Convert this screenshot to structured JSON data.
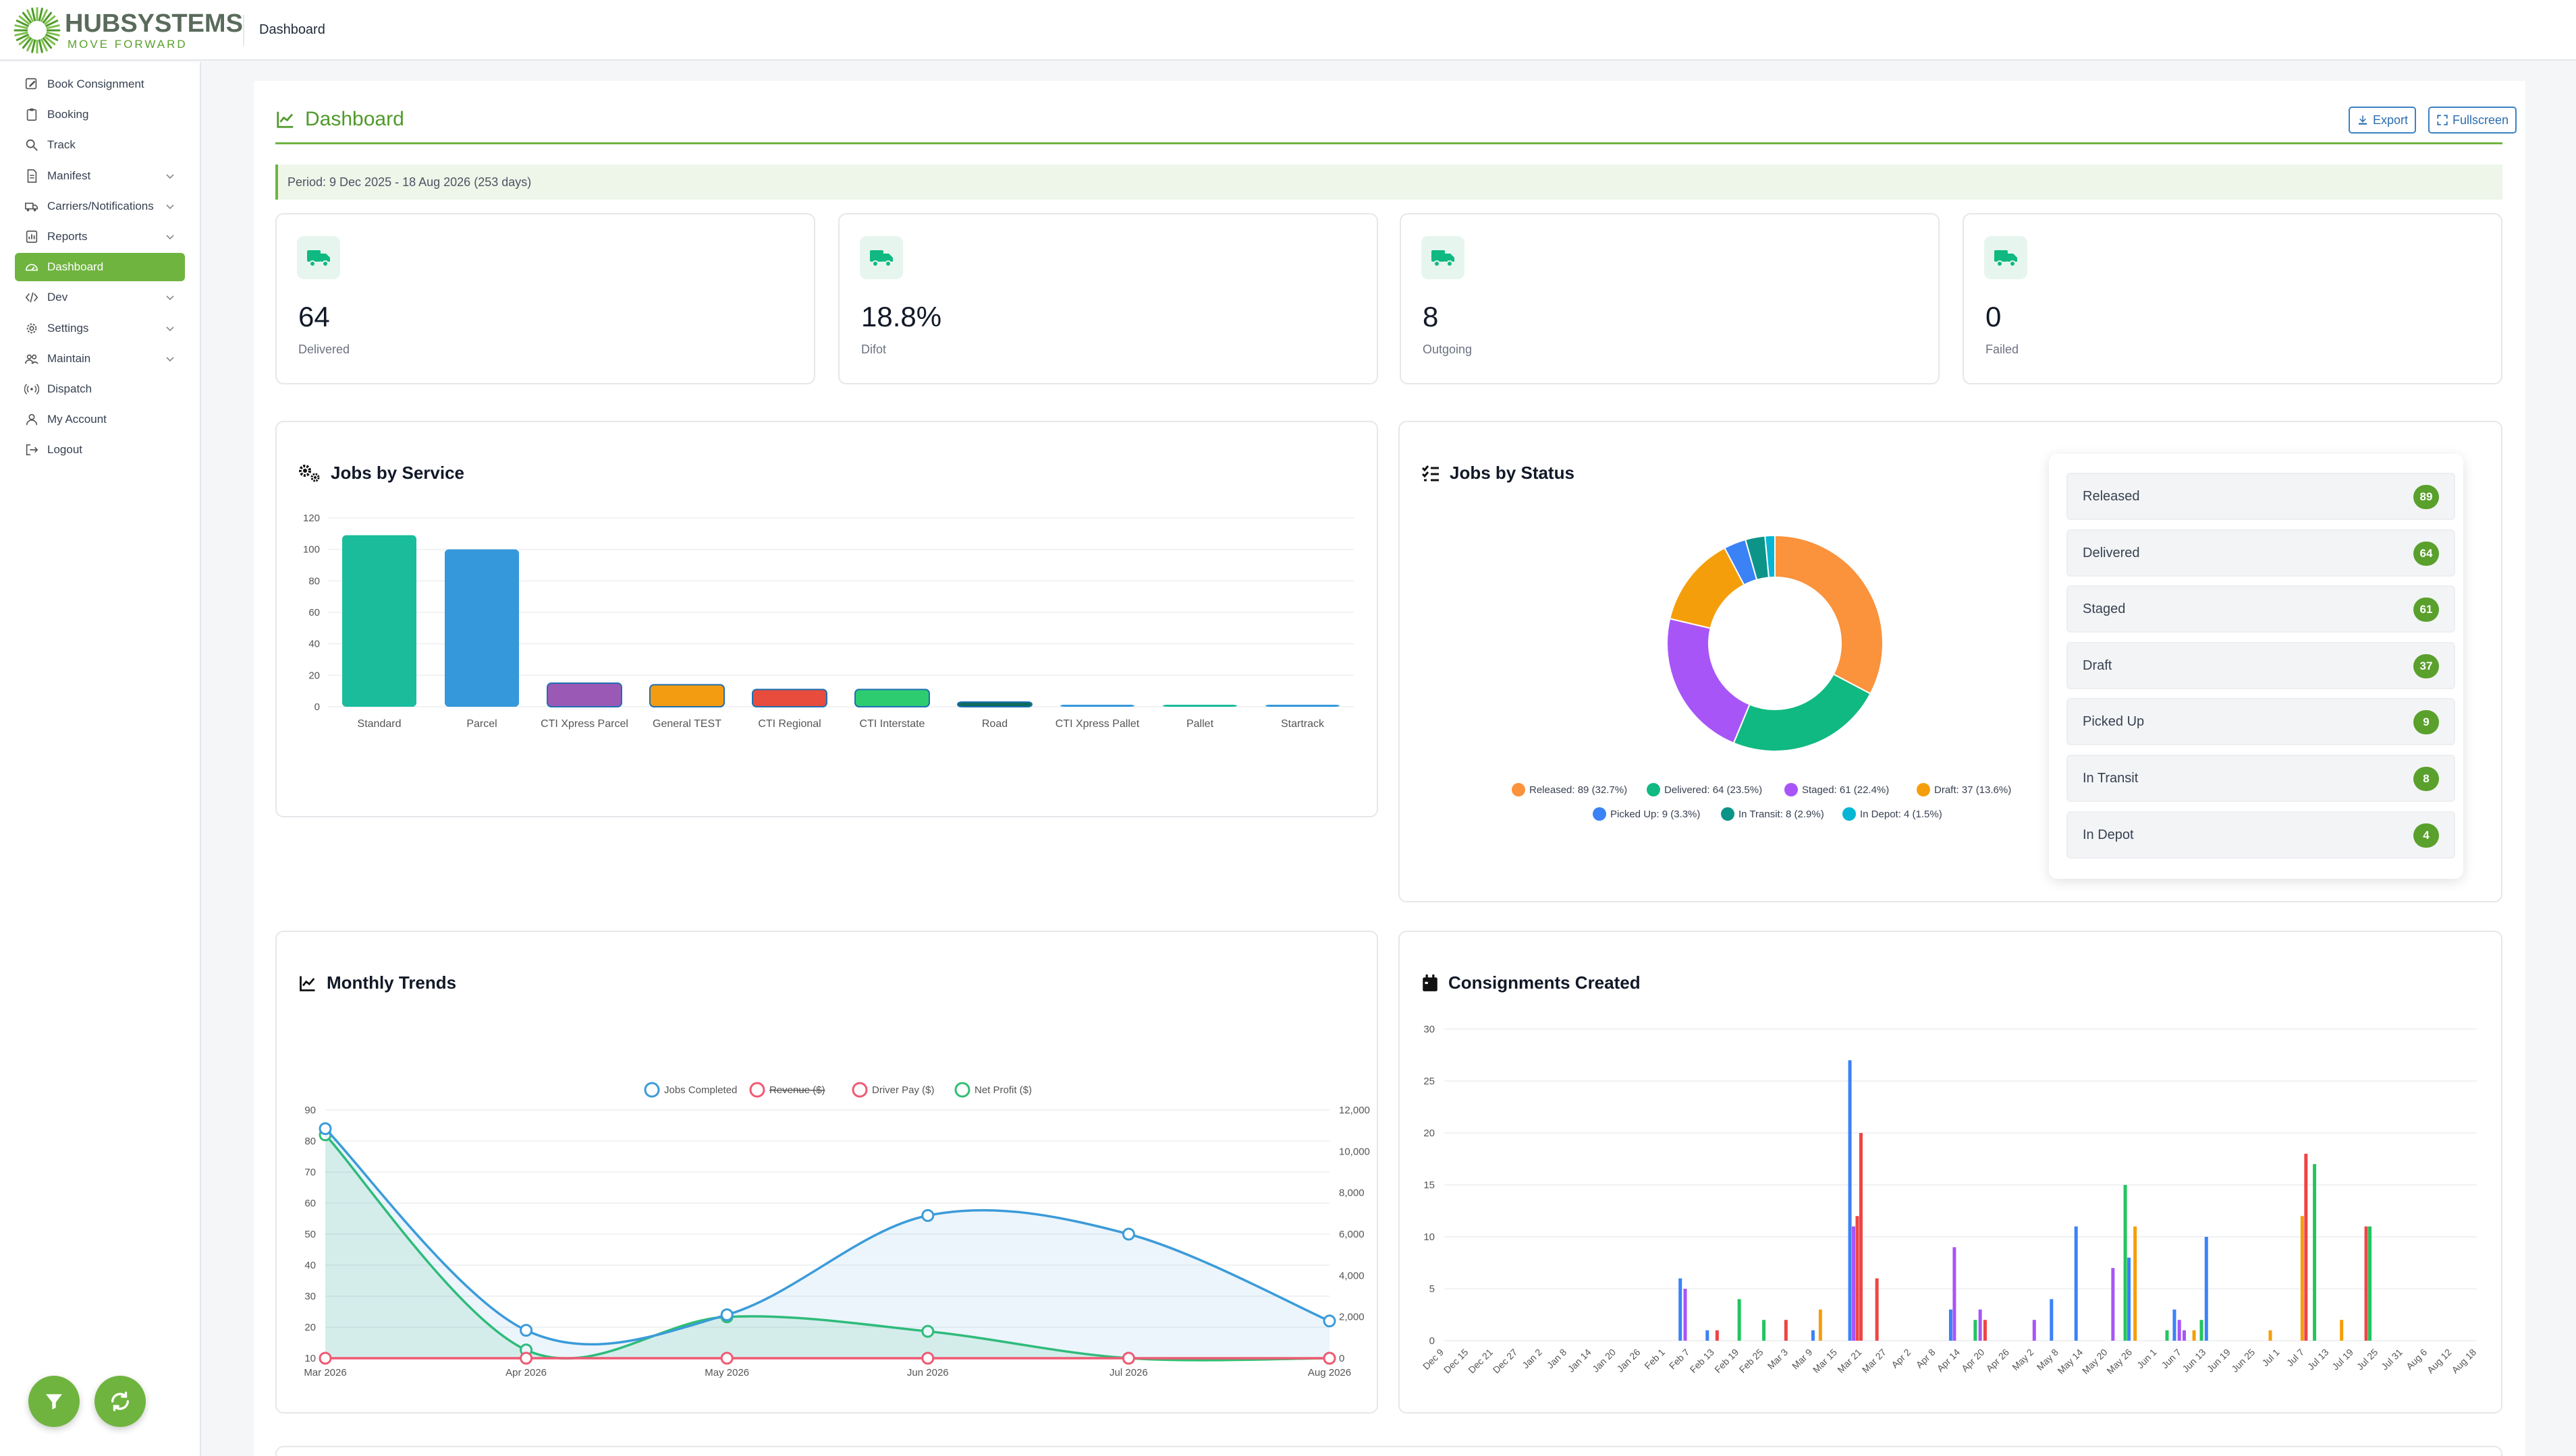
{
  "topbar": {
    "brand": "HUBSYSTEMS",
    "tagline": "MOVE FORWARD",
    "page": "Dashboard"
  },
  "sidebar": {
    "items": [
      {
        "label": "Book Consignment",
        "icon": "edit-icon",
        "chevron": false
      },
      {
        "label": "Booking",
        "icon": "clipboard-icon",
        "chevron": false
      },
      {
        "label": "Track",
        "icon": "search-icon",
        "chevron": false
      },
      {
        "label": "Manifest",
        "icon": "document-icon",
        "chevron": true
      },
      {
        "label": "Carriers/Notifications",
        "icon": "truck-icon",
        "chevron": true
      },
      {
        "label": "Reports",
        "icon": "report-icon",
        "chevron": true
      },
      {
        "label": "Dashboard",
        "icon": "gauge-icon",
        "chevron": false,
        "active": true
      },
      {
        "label": "Dev",
        "icon": "code-icon",
        "chevron": true
      },
      {
        "label": "Settings",
        "icon": "gear-icon",
        "chevron": true
      },
      {
        "label": "Maintain",
        "icon": "users-icon",
        "chevron": true
      },
      {
        "label": "Dispatch",
        "icon": "broadcast-icon",
        "chevron": false
      },
      {
        "label": "My Account",
        "icon": "user-icon",
        "chevron": false
      },
      {
        "label": "Logout",
        "icon": "logout-icon",
        "chevron": false
      }
    ]
  },
  "header": {
    "title": "Dashboard",
    "export_label": "Export",
    "fullscreen_label": "Fullscreen"
  },
  "period": "Period: 9 Dec 2025 - 18 Aug 2026 (253 days)",
  "stats": [
    {
      "value": "64",
      "label": "Delivered"
    },
    {
      "value": "18.8%",
      "label": "Difot"
    },
    {
      "value": "8",
      "label": "Outgoing"
    },
    {
      "value": "0",
      "label": "Failed"
    }
  ],
  "cards": {
    "jobs_by_service": "Jobs by Service",
    "jobs_by_status": "Jobs by Status",
    "monthly_trends": "Monthly Trends",
    "consignments_created": "Consignments Created"
  },
  "status_list": [
    {
      "label": "Released",
      "count": "89"
    },
    {
      "label": "Delivered",
      "count": "64"
    },
    {
      "label": "Staged",
      "count": "61"
    },
    {
      "label": "Draft",
      "count": "37"
    },
    {
      "label": "Picked Up",
      "count": "9"
    },
    {
      "label": "In Transit",
      "count": "8"
    },
    {
      "label": "In Depot",
      "count": "4"
    }
  ],
  "colors": {
    "accent": "#6fb43f",
    "brand_text": "#5a6b5c",
    "link": "#2b6cb0"
  },
  "chart_data": [
    {
      "type": "bar",
      "title": "Jobs by Service",
      "categories": [
        "Standard",
        "Parcel",
        "CTI Xpress Parcel",
        "General TEST",
        "CTI Regional",
        "CTI Interstate",
        "Road",
        "CTI Xpress Pallet",
        "Pallet",
        "Startrack"
      ],
      "values": [
        109,
        100,
        15,
        14,
        11,
        11,
        3,
        1,
        1,
        1
      ],
      "colors": [
        "#1abc9c",
        "#3498db",
        "#9b59b6",
        "#f39c12",
        "#e74c3c",
        "#2ecc71",
        "#0e6b5c",
        "#3498db",
        "#1abc9c",
        "#3498db"
      ],
      "yticks": [
        0,
        20,
        40,
        60,
        80,
        100,
        120
      ],
      "ylim": [
        0,
        120
      ]
    },
    {
      "type": "pie",
      "title": "Jobs by Status",
      "slices": [
        {
          "label": "Released",
          "value": 89,
          "legend": "Released: 89 (32.7%)",
          "color": "#fb923c"
        },
        {
          "label": "Delivered",
          "value": 64,
          "legend": "Delivered: 64 (23.5%)",
          "color": "#10b981"
        },
        {
          "label": "Staged",
          "value": 61,
          "legend": "Staged: 61 (22.4%)",
          "color": "#a855f7"
        },
        {
          "label": "Draft",
          "value": 37,
          "legend": "Draft: 37 (13.6%)",
          "color": "#f59e0b"
        },
        {
          "label": "Picked Up",
          "value": 9,
          "legend": "Picked Up: 9 (3.3%)",
          "color": "#3b82f6"
        },
        {
          "label": "In Transit",
          "value": 8,
          "legend": "In Transit: 8 (2.9%)",
          "color": "#0d9488"
        },
        {
          "label": "In Depot",
          "value": 4,
          "legend": "In Depot: 4 (1.5%)",
          "color": "#06b6d4"
        }
      ]
    },
    {
      "type": "line",
      "title": "Monthly Trends",
      "x": [
        "Mar 2026",
        "Apr 2026",
        "May 2026",
        "Jun 2026",
        "Jul 2026",
        "Aug 2026"
      ],
      "yticks_left": [
        10,
        20,
        30,
        40,
        50,
        60,
        70,
        80,
        90
      ],
      "yticks_right": [
        "0",
        "2,000",
        "4,000",
        "6,000",
        "8,000",
        "10,000",
        "12,000"
      ],
      "series": [
        {
          "name": "Jobs Completed",
          "values": [
            84,
            19,
            24,
            56,
            50,
            22
          ],
          "color": "#3b9bd9",
          "axis": "left"
        },
        {
          "name": "Revenue ($)",
          "values": [
            0,
            0,
            0,
            0,
            0,
            0
          ],
          "color": "#ef5a73",
          "axis": "right",
          "hidden": true
        },
        {
          "name": "Driver Pay ($)",
          "values": [
            0,
            0,
            0,
            0,
            0,
            0
          ],
          "color": "#ef5a73",
          "axis": "right"
        },
        {
          "name": "Net Profit ($)",
          "values": [
            10800,
            400,
            2000,
            1300,
            0,
            0
          ],
          "color": "#2fbf71",
          "axis": "right"
        }
      ]
    },
    {
      "type": "bar",
      "title": "Consignments Created",
      "x": [
        "Dec 9",
        "Dec 15",
        "Dec 21",
        "Dec 27",
        "Jan 2",
        "Jan 8",
        "Jan 14",
        "Jan 20",
        "Jan 26",
        "Feb 1",
        "Feb 7",
        "Feb 13",
        "Feb 19",
        "Feb 25",
        "Mar 3",
        "Mar 9",
        "Mar 15",
        "Mar 21",
        "Mar 27",
        "Apr 2",
        "Apr 8",
        "Apr 14",
        "Apr 20",
        "Apr 26",
        "May 2",
        "May 8",
        "May 14",
        "May 20",
        "May 26",
        "Jun 1",
        "Jun 7",
        "Jun 13",
        "Jun 19",
        "Jun 25",
        "Jul 1",
        "Jul 7",
        "Jul 13",
        "Jul 19",
        "Jul 25",
        "Jul 31",
        "Aug 6",
        "Aug 12",
        "Aug 18"
      ],
      "yticks": [
        0,
        5,
        10,
        15,
        20,
        25,
        30
      ],
      "ylim": [
        0,
        30
      ],
      "bars": [
        {
          "pos": 9.6,
          "value": 6,
          "color": "#3b82f6"
        },
        {
          "pos": 9.8,
          "value": 5,
          "color": "#a855f7"
        },
        {
          "pos": 10.7,
          "value": 1,
          "color": "#3b82f6"
        },
        {
          "pos": 11.1,
          "value": 1,
          "color": "#ef4444"
        },
        {
          "pos": 12.0,
          "value": 4,
          "color": "#22c55e"
        },
        {
          "pos": 13.0,
          "value": 2,
          "color": "#22c55e"
        },
        {
          "pos": 13.9,
          "value": 2,
          "color": "#ef4444"
        },
        {
          "pos": 15.0,
          "value": 1,
          "color": "#3b82f6"
        },
        {
          "pos": 15.3,
          "value": 3,
          "color": "#f59e0b"
        },
        {
          "pos": 16.5,
          "value": 27,
          "color": "#3b82f6"
        },
        {
          "pos": 16.65,
          "value": 11,
          "color": "#a855f7"
        },
        {
          "pos": 16.8,
          "value": 12,
          "color": "#ef4444"
        },
        {
          "pos": 16.95,
          "value": 20,
          "color": "#ef4444"
        },
        {
          "pos": 17.6,
          "value": 6,
          "color": "#ef4444"
        },
        {
          "pos": 20.6,
          "value": 3,
          "color": "#3b82f6"
        },
        {
          "pos": 20.75,
          "value": 9,
          "color": "#a855f7"
        },
        {
          "pos": 21.6,
          "value": 2,
          "color": "#22c55e"
        },
        {
          "pos": 21.8,
          "value": 3,
          "color": "#a855f7"
        },
        {
          "pos": 22.0,
          "value": 2,
          "color": "#ef4444"
        },
        {
          "pos": 24.0,
          "value": 2,
          "color": "#a855f7"
        },
        {
          "pos": 24.7,
          "value": 4,
          "color": "#3b82f6"
        },
        {
          "pos": 25.7,
          "value": 11,
          "color": "#3b82f6"
        },
        {
          "pos": 27.2,
          "value": 7,
          "color": "#a855f7"
        },
        {
          "pos": 27.7,
          "value": 15,
          "color": "#22c55e"
        },
        {
          "pos": 27.85,
          "value": 8,
          "color": "#3b82f6"
        },
        {
          "pos": 28.1,
          "value": 11,
          "color": "#f59e0b"
        },
        {
          "pos": 29.4,
          "value": 1,
          "color": "#22c55e"
        },
        {
          "pos": 29.7,
          "value": 3,
          "color": "#3b82f6"
        },
        {
          "pos": 29.9,
          "value": 2,
          "color": "#a855f7"
        },
        {
          "pos": 30.1,
          "value": 1,
          "color": "#a855f7"
        },
        {
          "pos": 30.5,
          "value": 1,
          "color": "#f59e0b"
        },
        {
          "pos": 30.8,
          "value": 2,
          "color": "#22c55e"
        },
        {
          "pos": 31.0,
          "value": 10,
          "color": "#3b82f6"
        },
        {
          "pos": 33.6,
          "value": 1,
          "color": "#f59e0b"
        },
        {
          "pos": 34.9,
          "value": 12,
          "color": "#f59e0b"
        },
        {
          "pos": 35.05,
          "value": 18,
          "color": "#ef4444"
        },
        {
          "pos": 35.4,
          "value": 17,
          "color": "#22c55e"
        },
        {
          "pos": 36.5,
          "value": 2,
          "color": "#f59e0b"
        },
        {
          "pos": 37.5,
          "value": 11,
          "color": "#ef4444"
        },
        {
          "pos": 37.65,
          "value": 11,
          "color": "#22c55e"
        }
      ]
    }
  ]
}
